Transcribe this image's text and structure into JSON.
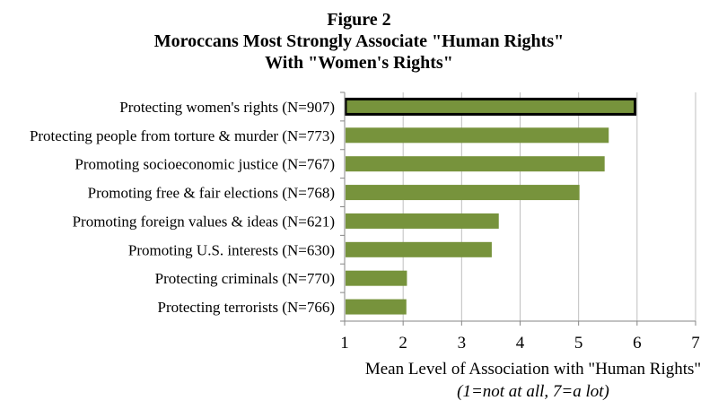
{
  "figure_label": "Figure 2",
  "title_line1": "Moroccans Most Strongly Associate \"Human Rights\"",
  "title_line2": "With \"Women's Rights\"",
  "chart_data": {
    "type": "bar",
    "orientation": "horizontal",
    "categories": [
      "Protecting women's rights (N=907)",
      "Protecting people from torture & murder (N=773)",
      "Promoting socioeconomic justice (N=767)",
      "Promoting free & fair elections (N=768)",
      "Promoting foreign values & ideas (N=621)",
      "Promoting U.S. interests (N=630)",
      "Protecting criminals (N=770)",
      "Protecting terrorists (N=766)"
    ],
    "values": [
      5.95,
      5.5,
      5.43,
      5.0,
      3.62,
      3.5,
      2.05,
      2.04
    ],
    "highlighted_index": 0,
    "xlim": [
      1,
      7
    ],
    "xticks": [
      "1",
      "2",
      "3",
      "4",
      "5",
      "6",
      "7"
    ],
    "xlabel": "Mean Level of Association with \"Human Rights\"",
    "xlabel_sub": "(1=not at all, 7=a lot)",
    "grid": true,
    "colors": {
      "bar": "#77933c",
      "highlight_border": "#000000",
      "grid": "#bfbfbf",
      "axis": "#868686"
    }
  }
}
